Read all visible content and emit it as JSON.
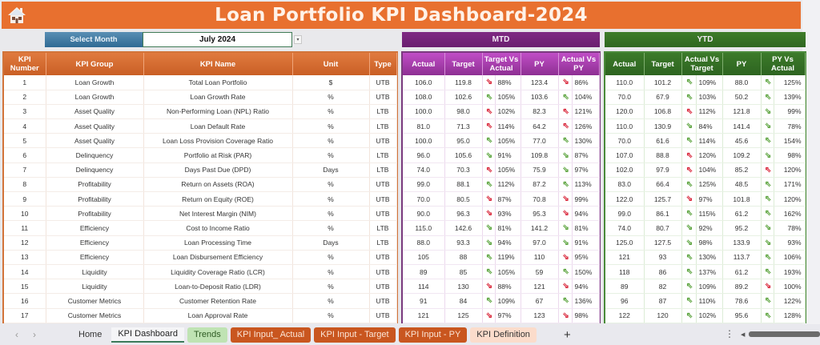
{
  "header": {
    "title": "Loan Portfolio KPI Dashboard-2024",
    "home_icon": "home-icon"
  },
  "selector": {
    "label": "Select Month",
    "value": "July 2024",
    "dropdown_icon": "▾"
  },
  "sections": {
    "mtd": "MTD",
    "ytd": "YTD"
  },
  "kpi_columns": [
    "KPI Number",
    "KPI Group",
    "KPI Name",
    "Unit",
    "Type"
  ],
  "mtd_columns": [
    "Actual",
    "Target",
    "Target Vs Actual",
    "PY",
    "Actual Vs PY"
  ],
  "ytd_columns": [
    "Actual",
    "Target",
    "Actual Vs Target",
    "PY",
    "PY Vs Actual"
  ],
  "colors": {
    "banner": "#e8702f",
    "kpi_header": "#d2743a",
    "mtd_header": "#8e2f93",
    "ytd_header": "#2d6420",
    "arrow_green": "#5aa33c",
    "arrow_red": "#d9263a"
  },
  "rows": [
    {
      "num": "1",
      "group": "Loan Growth",
      "name": "Total Loan Portfolio",
      "unit": "$",
      "type": "UTB",
      "mtd": {
        "actual": "106.0",
        "target": "119.8",
        "tva_dir": "down",
        "tva_color": "red",
        "tva": "88%",
        "py": "123.4",
        "avp_dir": "down",
        "avp_color": "red",
        "avp": "86%"
      },
      "ytd": {
        "actual": "110.0",
        "target": "101.2",
        "avt_dir": "up",
        "avt_color": "green",
        "avt": "109%",
        "py": "88.0",
        "pva_dir": "up",
        "pva_color": "green",
        "pva": "125%"
      }
    },
    {
      "num": "2",
      "group": "Loan Growth",
      "name": "Loan Growth Rate",
      "unit": "%",
      "type": "UTB",
      "mtd": {
        "actual": "108.0",
        "target": "102.6",
        "tva_dir": "up",
        "tva_color": "green",
        "tva": "105%",
        "py": "103.6",
        "avp_dir": "up",
        "avp_color": "green",
        "avp": "104%"
      },
      "ytd": {
        "actual": "70.0",
        "target": "67.9",
        "avt_dir": "up",
        "avt_color": "green",
        "avt": "103%",
        "py": "50.2",
        "pva_dir": "up",
        "pva_color": "green",
        "pva": "139%"
      }
    },
    {
      "num": "3",
      "group": "Asset Quality",
      "name": "Non-Performing Loan (NPL) Ratio",
      "unit": "%",
      "type": "LTB",
      "mtd": {
        "actual": "100.0",
        "target": "98.0",
        "tva_dir": "up",
        "tva_color": "red",
        "tva": "102%",
        "py": "82.3",
        "avp_dir": "up",
        "avp_color": "red",
        "avp": "121%"
      },
      "ytd": {
        "actual": "120.0",
        "target": "106.8",
        "avt_dir": "up",
        "avt_color": "red",
        "avt": "112%",
        "py": "121.8",
        "pva_dir": "down",
        "pva_color": "green",
        "pva": "99%"
      }
    },
    {
      "num": "4",
      "group": "Asset Quality",
      "name": "Loan Default Rate",
      "unit": "%",
      "type": "LTB",
      "mtd": {
        "actual": "81.0",
        "target": "71.3",
        "tva_dir": "up",
        "tva_color": "red",
        "tva": "114%",
        "py": "64.2",
        "avp_dir": "up",
        "avp_color": "red",
        "avp": "126%"
      },
      "ytd": {
        "actual": "110.0",
        "target": "130.9",
        "avt_dir": "down",
        "avt_color": "green",
        "avt": "84%",
        "py": "141.4",
        "pva_dir": "down",
        "pva_color": "green",
        "pva": "78%"
      }
    },
    {
      "num": "5",
      "group": "Asset Quality",
      "name": "Loan Loss Provision Coverage Ratio",
      "unit": "%",
      "type": "UTB",
      "mtd": {
        "actual": "100.0",
        "target": "95.0",
        "tva_dir": "up",
        "tva_color": "green",
        "tva": "105%",
        "py": "77.0",
        "avp_dir": "up",
        "avp_color": "green",
        "avp": "130%"
      },
      "ytd": {
        "actual": "70.0",
        "target": "61.6",
        "avt_dir": "up",
        "avt_color": "green",
        "avt": "114%",
        "py": "45.6",
        "pva_dir": "up",
        "pva_color": "green",
        "pva": "154%"
      }
    },
    {
      "num": "6",
      "group": "Delinquency",
      "name": "Portfolio at Risk (PAR)",
      "unit": "%",
      "type": "LTB",
      "mtd": {
        "actual": "96.0",
        "target": "105.6",
        "tva_dir": "down",
        "tva_color": "green",
        "tva": "91%",
        "py": "109.8",
        "avp_dir": "down",
        "avp_color": "green",
        "avp": "87%"
      },
      "ytd": {
        "actual": "107.0",
        "target": "88.8",
        "avt_dir": "up",
        "avt_color": "red",
        "avt": "120%",
        "py": "109.2",
        "pva_dir": "down",
        "pva_color": "green",
        "pva": "98%"
      }
    },
    {
      "num": "7",
      "group": "Delinquency",
      "name": "Days Past Due (DPD)",
      "unit": "Days",
      "type": "LTB",
      "mtd": {
        "actual": "74.0",
        "target": "70.3",
        "tva_dir": "up",
        "tva_color": "red",
        "tva": "105%",
        "py": "75.9",
        "avp_dir": "down",
        "avp_color": "green",
        "avp": "97%"
      },
      "ytd": {
        "actual": "102.0",
        "target": "97.9",
        "avt_dir": "up",
        "avt_color": "red",
        "avt": "104%",
        "py": "85.2",
        "pva_dir": "up",
        "pva_color": "red",
        "pva": "120%"
      }
    },
    {
      "num": "8",
      "group": "Profitability",
      "name": "Return on Assets (ROA)",
      "unit": "%",
      "type": "UTB",
      "mtd": {
        "actual": "99.0",
        "target": "88.1",
        "tva_dir": "up",
        "tva_color": "green",
        "tva": "112%",
        "py": "87.2",
        "avp_dir": "up",
        "avp_color": "green",
        "avp": "113%"
      },
      "ytd": {
        "actual": "83.0",
        "target": "66.4",
        "avt_dir": "up",
        "avt_color": "green",
        "avt": "125%",
        "py": "48.5",
        "pva_dir": "up",
        "pva_color": "green",
        "pva": "171%"
      }
    },
    {
      "num": "9",
      "group": "Profitability",
      "name": "Return on Equity (ROE)",
      "unit": "%",
      "type": "UTB",
      "mtd": {
        "actual": "70.0",
        "target": "80.5",
        "tva_dir": "down",
        "tva_color": "red",
        "tva": "87%",
        "py": "70.8",
        "avp_dir": "down",
        "avp_color": "red",
        "avp": "99%"
      },
      "ytd": {
        "actual": "122.0",
        "target": "125.7",
        "avt_dir": "down",
        "avt_color": "red",
        "avt": "97%",
        "py": "101.8",
        "pva_dir": "up",
        "pva_color": "green",
        "pva": "120%"
      }
    },
    {
      "num": "10",
      "group": "Profitability",
      "name": "Net Interest Margin (NIM)",
      "unit": "%",
      "type": "UTB",
      "mtd": {
        "actual": "90.0",
        "target": "96.3",
        "tva_dir": "down",
        "tva_color": "red",
        "tva": "93%",
        "py": "95.3",
        "avp_dir": "down",
        "avp_color": "red",
        "avp": "94%"
      },
      "ytd": {
        "actual": "99.0",
        "target": "86.1",
        "avt_dir": "up",
        "avt_color": "green",
        "avt": "115%",
        "py": "61.2",
        "pva_dir": "up",
        "pva_color": "green",
        "pva": "162%"
      }
    },
    {
      "num": "11",
      "group": "Efficiency",
      "name": "Cost to Income Ratio",
      "unit": "%",
      "type": "LTB",
      "mtd": {
        "actual": "115.0",
        "target": "142.6",
        "tva_dir": "down",
        "tva_color": "green",
        "tva": "81%",
        "py": "141.2",
        "avp_dir": "down",
        "avp_color": "green",
        "avp": "81%"
      },
      "ytd": {
        "actual": "74.0",
        "target": "80.7",
        "avt_dir": "down",
        "avt_color": "green",
        "avt": "92%",
        "py": "95.2",
        "pva_dir": "down",
        "pva_color": "green",
        "pva": "78%"
      }
    },
    {
      "num": "12",
      "group": "Efficiency",
      "name": "Loan Processing Time",
      "unit": "Days",
      "type": "LTB",
      "mtd": {
        "actual": "88.0",
        "target": "93.3",
        "tva_dir": "down",
        "tva_color": "green",
        "tva": "94%",
        "py": "97.0",
        "avp_dir": "down",
        "avp_color": "green",
        "avp": "91%"
      },
      "ytd": {
        "actual": "125.0",
        "target": "127.5",
        "avt_dir": "down",
        "avt_color": "green",
        "avt": "98%",
        "py": "133.9",
        "pva_dir": "down",
        "pva_color": "green",
        "pva": "93%"
      }
    },
    {
      "num": "13",
      "group": "Efficiency",
      "name": "Loan Disbursement Efficiency",
      "unit": "%",
      "type": "UTB",
      "mtd": {
        "actual": "105",
        "target": "88",
        "tva_dir": "up",
        "tva_color": "green",
        "tva": "119%",
        "py": "110",
        "avp_dir": "down",
        "avp_color": "red",
        "avp": "95%"
      },
      "ytd": {
        "actual": "121",
        "target": "93",
        "avt_dir": "up",
        "avt_color": "green",
        "avt": "130%",
        "py": "113.7",
        "pva_dir": "up",
        "pva_color": "green",
        "pva": "106%"
      }
    },
    {
      "num": "14",
      "group": "Liquidity",
      "name": "Liquidity Coverage Ratio (LCR)",
      "unit": "%",
      "type": "UTB",
      "mtd": {
        "actual": "89",
        "target": "85",
        "tva_dir": "up",
        "tva_color": "green",
        "tva": "105%",
        "py": "59",
        "avp_dir": "up",
        "avp_color": "green",
        "avp": "150%"
      },
      "ytd": {
        "actual": "118",
        "target": "86",
        "avt_dir": "up",
        "avt_color": "green",
        "avt": "137%",
        "py": "61.2",
        "pva_dir": "up",
        "pva_color": "green",
        "pva": "193%"
      }
    },
    {
      "num": "15",
      "group": "Liquidity",
      "name": "Loan-to-Deposit Ratio (LDR)",
      "unit": "%",
      "type": "UTB",
      "mtd": {
        "actual": "114",
        "target": "130",
        "tva_dir": "down",
        "tva_color": "red",
        "tva": "88%",
        "py": "121",
        "avp_dir": "down",
        "avp_color": "red",
        "avp": "94%"
      },
      "ytd": {
        "actual": "89",
        "target": "82",
        "avt_dir": "up",
        "avt_color": "green",
        "avt": "109%",
        "py": "89.2",
        "pva_dir": "down",
        "pva_color": "red",
        "pva": "100%"
      }
    },
    {
      "num": "16",
      "group": "Customer Metrics",
      "name": "Customer Retention Rate",
      "unit": "%",
      "type": "UTB",
      "mtd": {
        "actual": "91",
        "target": "84",
        "tva_dir": "up",
        "tva_color": "green",
        "tva": "109%",
        "py": "67",
        "avp_dir": "up",
        "avp_color": "green",
        "avp": "136%"
      },
      "ytd": {
        "actual": "96",
        "target": "87",
        "avt_dir": "up",
        "avt_color": "green",
        "avt": "110%",
        "py": "78.6",
        "pva_dir": "up",
        "pva_color": "green",
        "pva": "122%"
      }
    },
    {
      "num": "17",
      "group": "Customer Metrics",
      "name": "Loan Approval Rate",
      "unit": "%",
      "type": "UTB",
      "mtd": {
        "actual": "121",
        "target": "125",
        "tva_dir": "down",
        "tva_color": "red",
        "tva": "97%",
        "py": "123",
        "avp_dir": "down",
        "avp_color": "red",
        "avp": "98%"
      },
      "ytd": {
        "actual": "122",
        "target": "120",
        "avt_dir": "up",
        "avt_color": "green",
        "avt": "102%",
        "py": "95.6",
        "pva_dir": "up",
        "pva_color": "green",
        "pva": "128%"
      }
    }
  ],
  "sheet_tabs": [
    {
      "label": "Home",
      "style": "plain"
    },
    {
      "label": "KPI Dashboard",
      "style": "active"
    },
    {
      "label": "Trends",
      "style": "green-tab"
    },
    {
      "label": "KPI Input_ Actual",
      "style": "orange-tab"
    },
    {
      "label": "KPI Input - Target",
      "style": "orange-tab"
    },
    {
      "label": "KPI Input - PY",
      "style": "orange-tab"
    },
    {
      "label": "KPI Definition",
      "style": "peach-tab"
    }
  ],
  "tabbar": {
    "prev": "‹",
    "next": "›",
    "add": "+",
    "more": "⋮",
    "scroll_left": "◀"
  }
}
